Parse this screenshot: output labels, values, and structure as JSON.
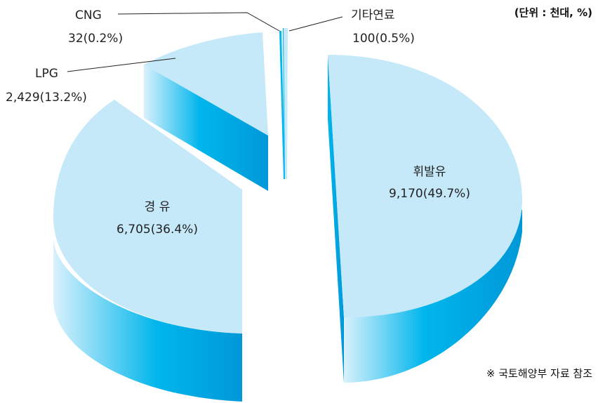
{
  "unit_label": "(단위 : 천대, %)",
  "source_note": "※ 국토해양부 자료 참조",
  "colors": {
    "top": "#c6e9fa",
    "side_light": "#d9f1fc",
    "side_mid": "#00b6ec",
    "side_dark": "#0098d8",
    "leader": "#222222"
  },
  "chart_data": {
    "type": "pie",
    "style": "3d-exploded",
    "slices": [
      {
        "name": "휘발유",
        "value": 9170,
        "percent": 49.7,
        "value_label": "9,170(49.7%)"
      },
      {
        "name": "경 유",
        "value": 6705,
        "percent": 36.4,
        "value_label": "6,705(36.4%)"
      },
      {
        "name": "LPG",
        "value": 2429,
        "percent": 13.2,
        "value_label": "2,429(13.2%)"
      },
      {
        "name": "CNG",
        "value": 32,
        "percent": 0.2,
        "value_label": "32(0.2%)"
      },
      {
        "name": "기타연료",
        "value": 100,
        "percent": 0.5,
        "value_label": "100(0.5%)"
      }
    ]
  }
}
